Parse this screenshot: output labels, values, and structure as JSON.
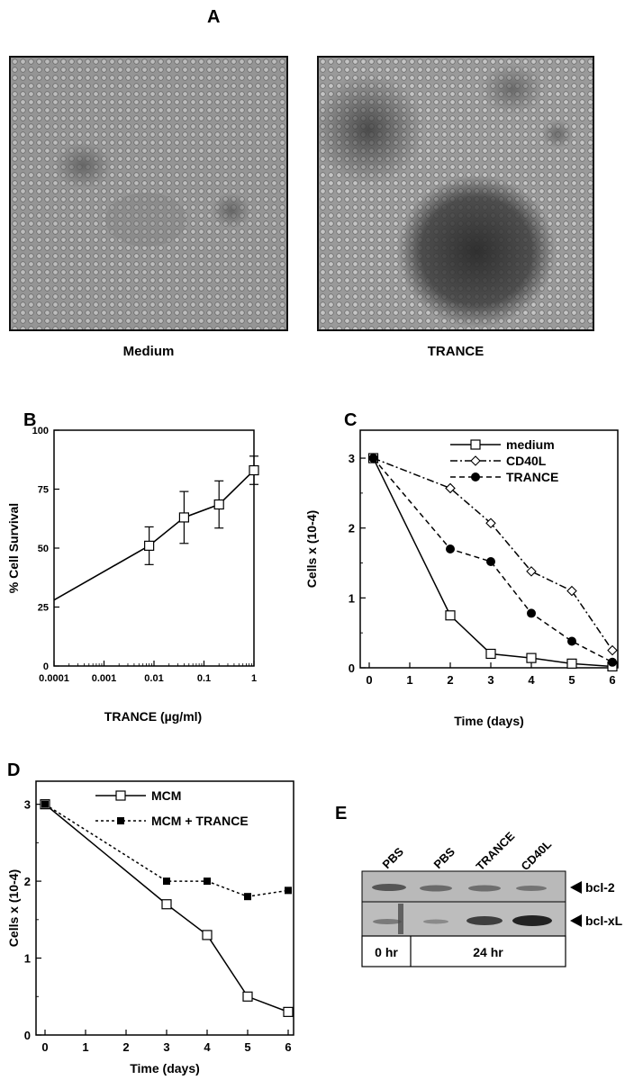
{
  "figure": {
    "panel_A": {
      "letter": "A",
      "images": [
        {
          "caption": "Medium"
        },
        {
          "caption": "TRANCE"
        }
      ]
    },
    "panel_E": {
      "letter": "E",
      "lanes": [
        "PBS",
        "PBS",
        "TRANCE",
        "CD40L"
      ],
      "bands": [
        "bcl-2",
        "bcl-xL"
      ],
      "time_labels": [
        "0 hr",
        "24 hr"
      ]
    }
  },
  "chart_data": [
    {
      "panel": "B",
      "type": "line",
      "xscale": "log",
      "xlabel": "TRANCE (µg/ml)",
      "ylabel": "% Cell Survival",
      "xticks": [
        "0.0001",
        "0.001",
        "0.01",
        "0.1",
        "1"
      ],
      "yticks": [
        "0",
        "25",
        "50",
        "75",
        "100"
      ],
      "ylim": [
        0,
        100
      ],
      "series": [
        {
          "x": [
            0.0001,
            0.008,
            0.04,
            0.2,
            1
          ],
          "y": [
            28,
            51,
            63,
            68.5,
            83
          ],
          "err": [
            null,
            8,
            11,
            10,
            6
          ],
          "markers": [
            false,
            true,
            true,
            true,
            true
          ]
        }
      ]
    },
    {
      "panel": "C",
      "type": "line",
      "xlabel": "Time (days)",
      "ylabel": "Cells x (10-4)",
      "xticks": [
        "0",
        "1",
        "2",
        "3",
        "4",
        "5",
        "6"
      ],
      "yticks": [
        "0",
        "1",
        "2",
        "3"
      ],
      "xlim": [
        0,
        6
      ],
      "ylim": [
        0,
        3.4
      ],
      "series": [
        {
          "name": "medium",
          "marker": "open-square",
          "dash": "solid",
          "x": [
            0.1,
            2,
            3,
            4,
            5,
            6
          ],
          "y": [
            3,
            0.75,
            0.2,
            0.14,
            0.06,
            0.02
          ]
        },
        {
          "name": "CD40L",
          "marker": "open-diamond",
          "dash": "dashdot",
          "x": [
            0.1,
            2,
            3,
            4,
            5,
            6
          ],
          "y": [
            3,
            2.57,
            2.07,
            1.38,
            1.1,
            0.25
          ]
        },
        {
          "name": "TRANCE",
          "marker": "filled-circle",
          "dash": "dashed",
          "x": [
            0.1,
            2,
            3,
            4,
            5,
            6
          ],
          "y": [
            3,
            1.7,
            1.52,
            0.78,
            0.38,
            0.08
          ]
        }
      ]
    },
    {
      "panel": "D",
      "type": "line",
      "xlabel": "Time (days)",
      "ylabel": "Cells x (10-4)",
      "xticks": [
        "0",
        "1",
        "2",
        "3",
        "4",
        "5",
        "6"
      ],
      "yticks": [
        "0",
        "1",
        "2",
        "3"
      ],
      "xlim": [
        0,
        6
      ],
      "ylim": [
        0,
        3.3
      ],
      "series": [
        {
          "name": "MCM",
          "marker": "open-square",
          "dash": "solid",
          "x": [
            0,
            3,
            4,
            5,
            6
          ],
          "y": [
            3,
            1.7,
            1.3,
            0.5,
            0.3
          ]
        },
        {
          "name": "MCM + TRANCE",
          "marker": "filled-square",
          "dash": "dotted",
          "x": [
            0,
            3,
            4,
            5,
            6
          ],
          "y": [
            3,
            2,
            2,
            1.8,
            1.88
          ]
        }
      ]
    }
  ]
}
